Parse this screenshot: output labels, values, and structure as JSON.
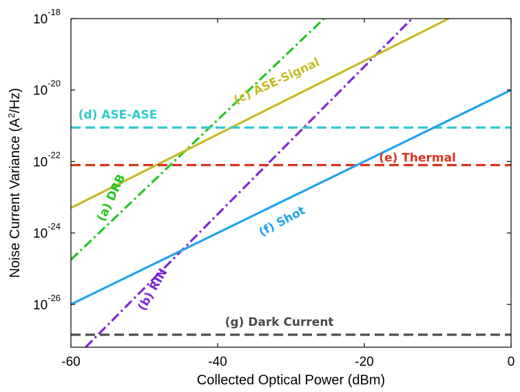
{
  "chart_data": {
    "type": "line",
    "xlabel": "Collected Optical Power (dBm)",
    "ylabel_prefix": "Noise Current Variance (A",
    "ylabel_sup": "2",
    "ylabel_suffix": "/Hz)",
    "xlim": [
      -60,
      0
    ],
    "ylim": [
      -27.2,
      -18
    ],
    "y_scale": "log10",
    "grid": false,
    "legend": "none (series labelled inline)",
    "x_ticks": [
      {
        "value": -60,
        "label": "-60"
      },
      {
        "value": -40,
        "label": "-40"
      },
      {
        "value": -20,
        "label": "-20"
      },
      {
        "value": 0,
        "label": "0"
      }
    ],
    "y_ticks": [
      {
        "value": -18,
        "base": "10",
        "exp": "-18"
      },
      {
        "value": -20,
        "base": "10",
        "exp": "-20"
      },
      {
        "value": -22,
        "base": "10",
        "exp": "-22"
      },
      {
        "value": -24,
        "base": "10",
        "exp": "-24"
      },
      {
        "value": -26,
        "base": "10",
        "exp": "-26"
      }
    ],
    "series": [
      {
        "name": "(a) DRB",
        "color": "#22c522",
        "style": "dash-dot",
        "label_x": -55.5,
        "label_y": -23.7,
        "label_angle": -65,
        "points": [
          [
            -60,
            -24.75
          ],
          [
            -25.5,
            -18
          ]
        ]
      },
      {
        "name": "(b) RIN",
        "color": "#7f25d6",
        "style": "dash-dot",
        "label_x": -50,
        "label_y": -26.2,
        "label_angle": -60,
        "points": [
          [
            -58,
            -27.2
          ],
          [
            -13.5,
            -18
          ]
        ]
      },
      {
        "name": "(c) ASE-Signal",
        "color": "#c4bb22",
        "style": "solid",
        "label_x": -37.5,
        "label_y": -20.4,
        "label_angle": -25,
        "points": [
          [
            -60,
            -23.3
          ],
          [
            -8.5,
            -18
          ]
        ]
      },
      {
        "name": "(d) ASE-ASE",
        "color": "#2fc9cf",
        "style": "dashed",
        "label_x": -59,
        "label_y": -20.8,
        "label_angle": 0,
        "points": [
          [
            -60,
            -21.05
          ],
          [
            0,
            -21.05
          ]
        ]
      },
      {
        "name": "(e) Thermal",
        "color": "#d9341a",
        "style": "dashed",
        "label_x": -18,
        "label_y": -22.0,
        "label_angle": 0,
        "points": [
          [
            -60,
            -22.1
          ],
          [
            0,
            -22.1
          ]
        ]
      },
      {
        "name": "(f) Shot",
        "color": "#1fa3ee",
        "style": "solid",
        "label_x": -34,
        "label_y": -24.1,
        "label_angle": -28,
        "points": [
          [
            -60,
            -26.0
          ],
          [
            0,
            -20.0
          ]
        ]
      },
      {
        "name": "(g) Dark Current",
        "color": "#4a4a4a",
        "style": "dashed",
        "label_x": -39,
        "label_y": -26.6,
        "label_angle": 0,
        "points": [
          [
            -60,
            -26.85
          ],
          [
            0,
            -26.85
          ]
        ]
      }
    ]
  }
}
